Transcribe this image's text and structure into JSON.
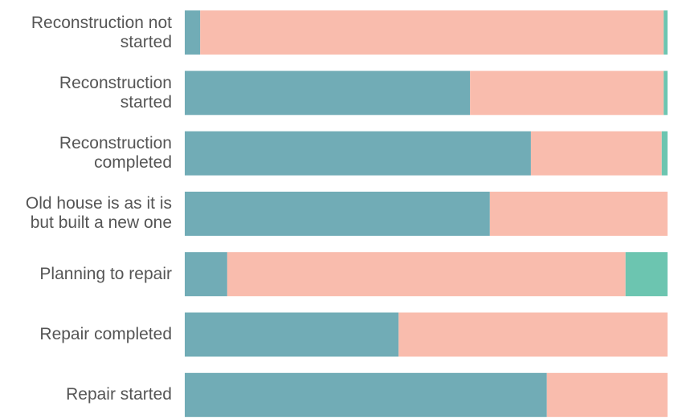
{
  "chart_data": {
    "type": "stacked-bar-horizontal",
    "categories": [
      "Reconstruction not started",
      "Reconstruction started",
      "Reconstruction completed",
      "Old house is as it is but built a new one",
      "Planning to repair",
      "Repair completed",
      "Repair started"
    ],
    "series": [
      {
        "color": "#71acb6",
        "values": [
          3.2,
          59.1,
          71.7,
          63.2,
          8.8,
          44.3,
          75.0
        ]
      },
      {
        "color": "#f9bcad",
        "values": [
          96.0,
          40.1,
          27.1,
          36.8,
          82.5,
          55.7,
          25.0
        ]
      },
      {
        "color": "#6cc5b0",
        "values": [
          0.8,
          0.8,
          1.2,
          0,
          8.7,
          0,
          0
        ]
      }
    ],
    "xlim": [
      0,
      100
    ]
  }
}
